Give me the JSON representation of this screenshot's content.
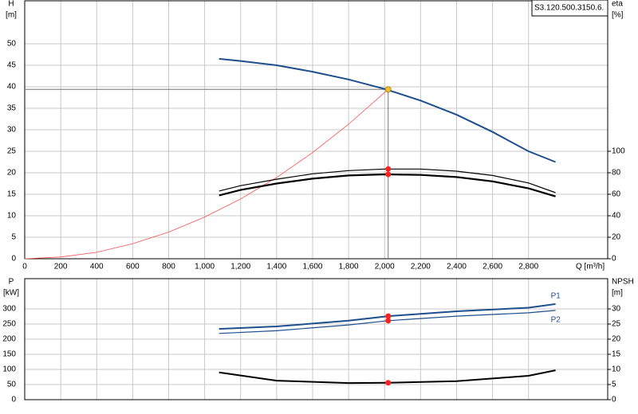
{
  "chart_data": [
    {
      "type": "line",
      "title": "S3.120.500.3150.6.",
      "y_label": "H",
      "y_unit": "[m]",
      "y2_label": "eta",
      "y2_unit": "[%]",
      "x_label": "Q [m³/h]",
      "xlim": [
        0,
        3240
      ],
      "xticks": [
        0,
        200,
        400,
        600,
        800,
        {
          "value": 1000,
          "label": "1,000"
        },
        {
          "value": 1200,
          "label": "1,200"
        },
        {
          "value": 1400,
          "label": "1,400"
        },
        {
          "value": 1600,
          "label": "1,600"
        },
        {
          "value": 1800,
          "label": "1,800"
        },
        {
          "value": 2000,
          "label": "2,000"
        },
        {
          "value": 2200,
          "label": "2,200"
        },
        {
          "value": 2400,
          "label": "2,400"
        },
        {
          "value": 2600,
          "label": "2,600"
        },
        {
          "value": 2800,
          "label": "2,800"
        }
      ],
      "ylim": [
        0,
        60
      ],
      "yticks": [
        0,
        5,
        10,
        15,
        20,
        25,
        30,
        35,
        40,
        45,
        50
      ],
      "y2lim": [
        0,
        240
      ],
      "y2ticks": [
        0,
        20,
        40,
        60,
        80,
        100
      ],
      "grid": true,
      "series": [
        {
          "color": "#1f4e8c",
          "width": 2,
          "x": [
            1080,
            1200,
            1400,
            1600,
            1800,
            2000,
            2200,
            2400,
            2600,
            2800,
            2950
          ],
          "values": [
            46.5,
            46,
            45,
            43.5,
            41.7,
            39.5,
            36.8,
            33.5,
            29.5,
            25,
            22.5
          ]
        },
        {
          "color": "#ff5050",
          "width": 0.8,
          "x": [
            0,
            200,
            400,
            600,
            800,
            1000,
            1200,
            1400,
            1600,
            1800,
            2020
          ],
          "values": [
            0,
            0.4,
            1.5,
            3.5,
            6.2,
            9.7,
            13.9,
            18.9,
            24.7,
            31.3,
            39.4
          ]
        },
        {
          "color": "#000000",
          "width": 1.2,
          "axis": "y2",
          "x": [
            1080,
            1200,
            1400,
            1600,
            1800,
            2000,
            2200,
            2400,
            2600,
            2800,
            2950
          ],
          "values": [
            63,
            68,
            74,
            79,
            82,
            83.5,
            83.5,
            81.5,
            77.5,
            70.5,
            61.5
          ]
        },
        {
          "color": "#000000",
          "width": 2.2,
          "axis": "y2",
          "x": [
            1080,
            1200,
            1400,
            1600,
            1800,
            2000,
            2200,
            2400,
            2600,
            2800,
            2950
          ],
          "values": [
            59,
            64,
            70,
            74.5,
            77.5,
            78.5,
            78,
            76,
            72,
            65.5,
            58
          ]
        }
      ],
      "markers": [
        {
          "x": 2020,
          "y": 39.4,
          "color": "#f5c02a",
          "crosshair": true
        },
        {
          "x": 2020,
          "y": 83.5,
          "axis": "y2",
          "color": "#ff2020"
        },
        {
          "x": 2020,
          "y": 78.5,
          "axis": "y2",
          "color": "#ff2020"
        }
      ]
    },
    {
      "type": "line",
      "y_label": "P",
      "y_unit": "[kW]",
      "y2_label": "NPSH",
      "y2_unit": "[m]",
      "xlim": [
        0,
        3240
      ],
      "ylim": [
        0,
        400
      ],
      "yticks": [
        0,
        50,
        100,
        150,
        200,
        250,
        300
      ],
      "y2lim": [
        0,
        40
      ],
      "y2ticks": [
        0,
        5,
        10,
        15,
        20,
        25,
        30
      ],
      "grid": true,
      "series": [
        {
          "name": "P1",
          "color": "#1f4e8c",
          "width": 2,
          "x": [
            1080,
            1400,
            1800,
            2020,
            2400,
            2800,
            2950
          ],
          "values": [
            234,
            242,
            261,
            276,
            292,
            304,
            316
          ]
        },
        {
          "name": "P2",
          "color": "#1f4e8c",
          "width": 1.2,
          "x": [
            1080,
            1400,
            1800,
            2020,
            2400,
            2800,
            2950
          ],
          "values": [
            219,
            228,
            247,
            261,
            276,
            287,
            295
          ]
        },
        {
          "color": "#000000",
          "width": 2,
          "axis": "y2",
          "x": [
            1080,
            1400,
            1800,
            2020,
            2400,
            2800,
            2950
          ],
          "values": [
            9,
            6.3,
            5.5,
            5.6,
            6.1,
            7.9,
            9.7
          ]
        }
      ],
      "markers": [
        {
          "x": 2020,
          "y": 276,
          "color": "#ff2020"
        },
        {
          "x": 2020,
          "y": 261,
          "color": "#ff2020"
        },
        {
          "x": 2020,
          "y": 5.6,
          "axis": "y2",
          "color": "#ff2020"
        }
      ]
    }
  ]
}
